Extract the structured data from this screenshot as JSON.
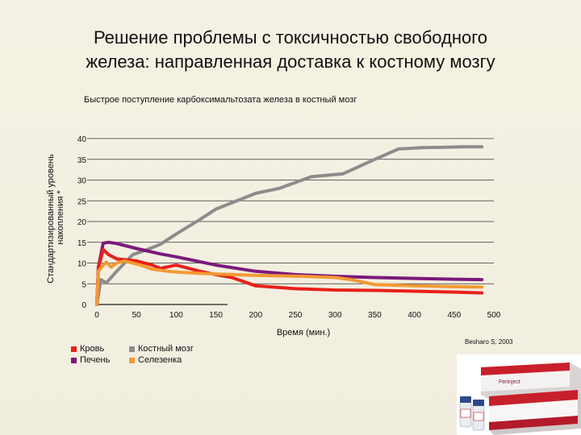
{
  "slide": {
    "title_line1": "Решение проблемы с токсичностью свободного",
    "title_line2": "железа: направленная доставка к костному мозгу"
  },
  "chart_data": {
    "type": "line",
    "title": "Быстрое поступление карбоксимальтозата железа в костный мозг",
    "xlabel": "Время (мин.)",
    "ylabel": "Стандартизированный уровень накопления *",
    "xlim": [
      0,
      500
    ],
    "ylim": [
      0,
      40
    ],
    "x_ticks": [
      0,
      50,
      100,
      150,
      200,
      250,
      300,
      350,
      400,
      450,
      500
    ],
    "y_ticks": [
      0,
      5,
      10,
      15,
      20,
      25,
      30,
      35,
      40
    ],
    "grid": "horizontal",
    "legend_position": "bottom-left",
    "series": [
      {
        "name": "Костный мозг",
        "color": "#8c8c8c",
        "x": [
          0,
          5,
          12,
          25,
          45,
          60,
          80,
          100,
          130,
          150,
          200,
          230,
          270,
          310,
          350,
          380,
          410,
          440,
          460,
          485
        ],
        "y": [
          0,
          6,
          5.2,
          8,
          12,
          13,
          14.5,
          17,
          20.5,
          23,
          26.8,
          28,
          30.8,
          31.5,
          35,
          37.5,
          37.8,
          37.9,
          38,
          38
        ]
      },
      {
        "name": "Печень",
        "color": "#7a1a7a",
        "x": [
          0,
          2,
          8,
          15,
          25,
          50,
          80,
          100,
          150,
          200,
          250,
          300,
          350,
          400,
          450,
          485
        ],
        "y": [
          0,
          9,
          14.8,
          15,
          14.7,
          13.5,
          12.2,
          11.5,
          9.5,
          8,
          7.2,
          6.8,
          6.5,
          6.3,
          6.1,
          6
        ]
      },
      {
        "name": "Кровь",
        "color": "#e8201a",
        "x": [
          0,
          2,
          8,
          15,
          25,
          50,
          60,
          70,
          80,
          100,
          130,
          150,
          170,
          200,
          250,
          300,
          350,
          400,
          450,
          485
        ],
        "y": [
          0,
          9,
          13.2,
          12,
          11,
          10.5,
          10,
          9.5,
          8.7,
          9.5,
          8,
          7.2,
          6.5,
          4.5,
          3.8,
          3.5,
          3.4,
          3.2,
          3,
          2.8
        ]
      },
      {
        "name": "Селезенка",
        "color": "#f39a33",
        "x": [
          0,
          2,
          8,
          12,
          18,
          25,
          35,
          55,
          70,
          90,
          100,
          130,
          200,
          260,
          300,
          320,
          350,
          400,
          450,
          485
        ],
        "y": [
          0,
          8,
          9.5,
          10.2,
          9,
          10,
          10.5,
          9.5,
          8.5,
          8,
          7.8,
          7.5,
          7,
          6.8,
          6.5,
          6,
          4.8,
          4.5,
          4.3,
          4.2
        ]
      }
    ],
    "legend_order": [
      "Кровь",
      "Печень",
      "Костный мозг",
      "Селезенка"
    ]
  },
  "source_note": "Besharo S, 2003",
  "product_image": {
    "label": "Ferinject"
  }
}
